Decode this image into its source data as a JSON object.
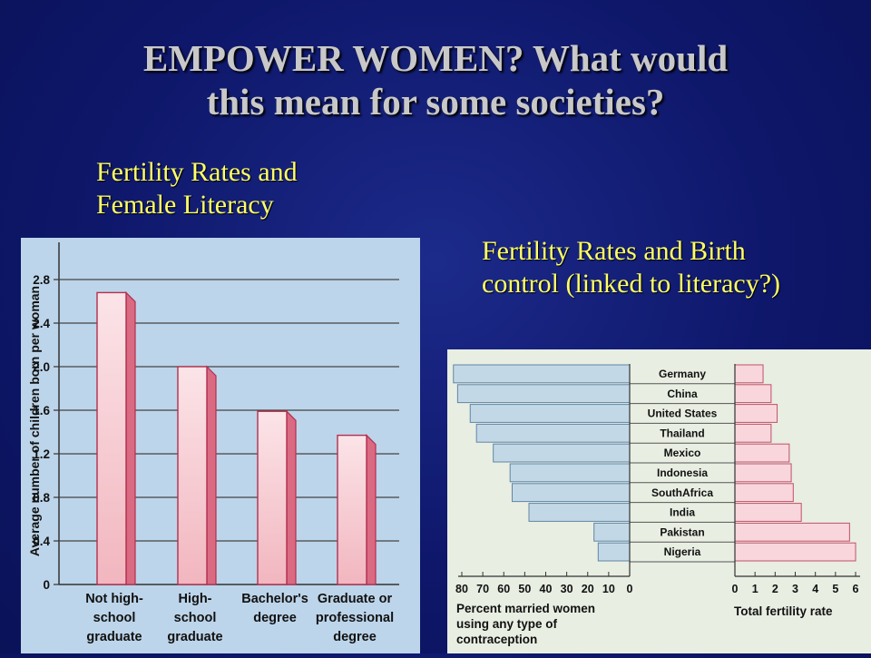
{
  "slide": {
    "title_line1": "EMPOWER WOMEN?  What would",
    "title_line2": "this mean for some societies?",
    "caption_left_line1": "Fertility Rates and",
    "caption_left_line2": "Female Literacy",
    "caption_right_line1": "Fertility Rates and Birth",
    "caption_right_line2": "control (linked to literacy?)"
  },
  "colors": {
    "background": "#0e176a",
    "title": "#c8c8c8",
    "caption": "#ffff66",
    "bar_fill": "#f2b6bf",
    "bar_edge": "#b22f4f",
    "contraception_fill": "#c3d8e6",
    "fertility_fill": "#f9d6dc"
  },
  "chart_data": [
    {
      "type": "bar",
      "ylabel": "Average number of children born per woman",
      "ylim": [
        0,
        3.0
      ],
      "yticks": [
        "0",
        "0.4",
        "0.8",
        "1.2",
        "1.6",
        "2.0",
        "2.4",
        "2.8"
      ],
      "categories": [
        [
          "Not high-",
          "school",
          "graduate"
        ],
        [
          "High-",
          "school",
          "graduate"
        ],
        [
          "Bachelor's",
          "degree"
        ],
        [
          "Graduate or",
          "professional",
          "degree"
        ]
      ],
      "values": [
        2.68,
        2.0,
        1.59,
        1.37
      ],
      "grid": true
    },
    {
      "type": "bar",
      "orientation": "horizontal-butterfly",
      "countries": [
        "Germany",
        "China",
        "United States",
        "Thailand",
        "Mexico",
        "Indonesia",
        "SouthAfrica",
        "India",
        "Pakistan",
        "Nigeria"
      ],
      "left": {
        "xlabel": [
          "Percent married women",
          "using any type of",
          "contraception"
        ],
        "xticks": [
          "80",
          "70",
          "60",
          "50",
          "40",
          "30",
          "20",
          "10",
          "0"
        ],
        "xlim": [
          0,
          80
        ],
        "values": [
          84,
          82,
          76,
          73,
          65,
          57,
          56,
          48,
          17,
          15
        ]
      },
      "right": {
        "xlabel": "Total fertility rate",
        "xticks": [
          "0",
          "1",
          "2",
          "3",
          "4",
          "5",
          "6"
        ],
        "xlim": [
          0,
          6
        ],
        "values": [
          1.4,
          1.8,
          2.1,
          1.8,
          2.7,
          2.8,
          2.9,
          3.3,
          5.7,
          6.0
        ]
      }
    }
  ]
}
